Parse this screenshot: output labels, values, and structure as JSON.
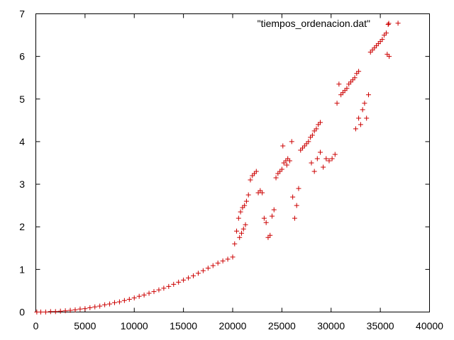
{
  "chart_data": {
    "type": "scatter",
    "title": "",
    "xlabel": "",
    "ylabel": "",
    "xlim": [
      0,
      40000
    ],
    "ylim": [
      0,
      7
    ],
    "xticks": [
      0,
      5000,
      10000,
      15000,
      20000,
      25000,
      30000,
      35000,
      40000
    ],
    "yticks": [
      0,
      1,
      2,
      3,
      4,
      5,
      6,
      7
    ],
    "grid": false,
    "legend_position": "top-right",
    "marker": "+",
    "color": "#cc0000",
    "series": [
      {
        "name": "\"tiempos_ordenacion.dat\"",
        "x": [
          100,
          500,
          1000,
          1500,
          2000,
          2500,
          3000,
          3500,
          4000,
          4500,
          5000,
          5500,
          6000,
          6500,
          7000,
          7500,
          8000,
          8500,
          9000,
          9500,
          10000,
          10500,
          11000,
          11500,
          12000,
          12500,
          13000,
          13500,
          14000,
          14500,
          15000,
          15500,
          16000,
          16500,
          17000,
          17500,
          18000,
          18500,
          19000,
          19500,
          20000,
          20200,
          20400,
          20600,
          20800,
          21000,
          21200,
          21400,
          21600,
          21800,
          22000,
          22200,
          22400,
          22600,
          22800,
          23000,
          20700,
          20900,
          21100,
          21300,
          23200,
          23400,
          23600,
          23800,
          24000,
          24200,
          24400,
          24600,
          24800,
          25000,
          25200,
          25400,
          25600,
          25800,
          26000,
          25100,
          25500,
          26100,
          26300,
          26500,
          26700,
          26900,
          27100,
          27300,
          27500,
          27700,
          27900,
          28100,
          28300,
          28500,
          28700,
          28900,
          28000,
          28300,
          28600,
          28900,
          29200,
          29500,
          29800,
          30100,
          30400,
          30600,
          30800,
          31000,
          31200,
          31400,
          31600,
          31800,
          32000,
          32200,
          32400,
          32600,
          32800,
          32500,
          32800,
          33000,
          33200,
          33400,
          33600,
          33800,
          34000,
          34200,
          34400,
          34600,
          34800,
          35000,
          35200,
          35400,
          35600,
          35800,
          35700,
          35900,
          36800
        ],
        "y": [
          0.0,
          0.0,
          0.0,
          0.01,
          0.01,
          0.02,
          0.03,
          0.04,
          0.05,
          0.07,
          0.08,
          0.1,
          0.12,
          0.14,
          0.17,
          0.19,
          0.22,
          0.24,
          0.27,
          0.3,
          0.33,
          0.37,
          0.4,
          0.44,
          0.48,
          0.52,
          0.56,
          0.6,
          0.65,
          0.7,
          0.75,
          0.8,
          0.85,
          0.91,
          0.97,
          1.03,
          1.09,
          1.15,
          1.2,
          1.24,
          1.29,
          1.6,
          1.9,
          2.2,
          2.35,
          2.45,
          2.5,
          2.6,
          2.75,
          3.1,
          3.2,
          3.25,
          3.3,
          2.8,
          2.85,
          2.8,
          1.75,
          1.85,
          1.95,
          2.05,
          2.2,
          2.1,
          1.75,
          1.8,
          2.25,
          2.4,
          3.15,
          3.25,
          3.3,
          3.35,
          3.5,
          3.55,
          3.6,
          3.55,
          4.0,
          3.9,
          3.45,
          2.7,
          2.2,
          2.5,
          2.9,
          3.8,
          3.85,
          3.9,
          3.95,
          4.0,
          4.1,
          4.15,
          4.25,
          4.3,
          4.4,
          4.45,
          3.5,
          3.3,
          3.6,
          3.75,
          3.4,
          3.6,
          3.55,
          3.6,
          3.7,
          4.9,
          5.35,
          5.1,
          5.15,
          5.2,
          5.25,
          5.35,
          5.4,
          5.45,
          5.5,
          5.6,
          5.65,
          4.3,
          4.55,
          4.4,
          4.75,
          4.9,
          4.55,
          5.1,
          6.1,
          6.15,
          6.2,
          6.25,
          6.3,
          6.35,
          6.4,
          6.5,
          6.55,
          6.75,
          6.05,
          6.0,
          6.78
        ]
      }
    ]
  }
}
